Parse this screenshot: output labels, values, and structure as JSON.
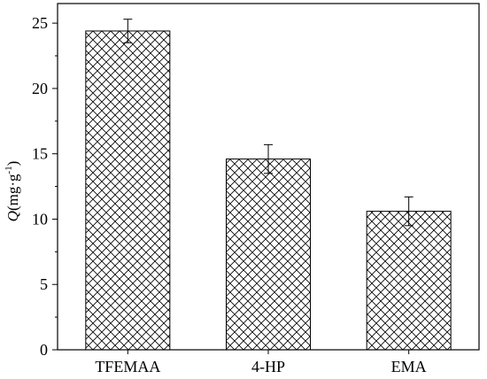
{
  "chart_data": {
    "type": "bar",
    "categories": [
      "TFEMAA",
      "4-HP",
      "EMA"
    ],
    "values": [
      24.4,
      14.6,
      10.6
    ],
    "errors": [
      0.9,
      1.1,
      1.1
    ],
    "ylabel": {
      "symbol": "Q",
      "unit": "(mg·g",
      "exponent": "-1",
      "close": ")"
    },
    "ylim": [
      0,
      26.5
    ],
    "yticks_major": [
      0,
      5,
      10,
      15,
      20,
      25
    ],
    "y_minor_step": 2.5,
    "bar_fill_pattern": "crosshatch",
    "colors": {
      "bar_edge": "#000000",
      "hatch": "#000000",
      "background": "#ffffff",
      "axis": "#000000"
    }
  }
}
